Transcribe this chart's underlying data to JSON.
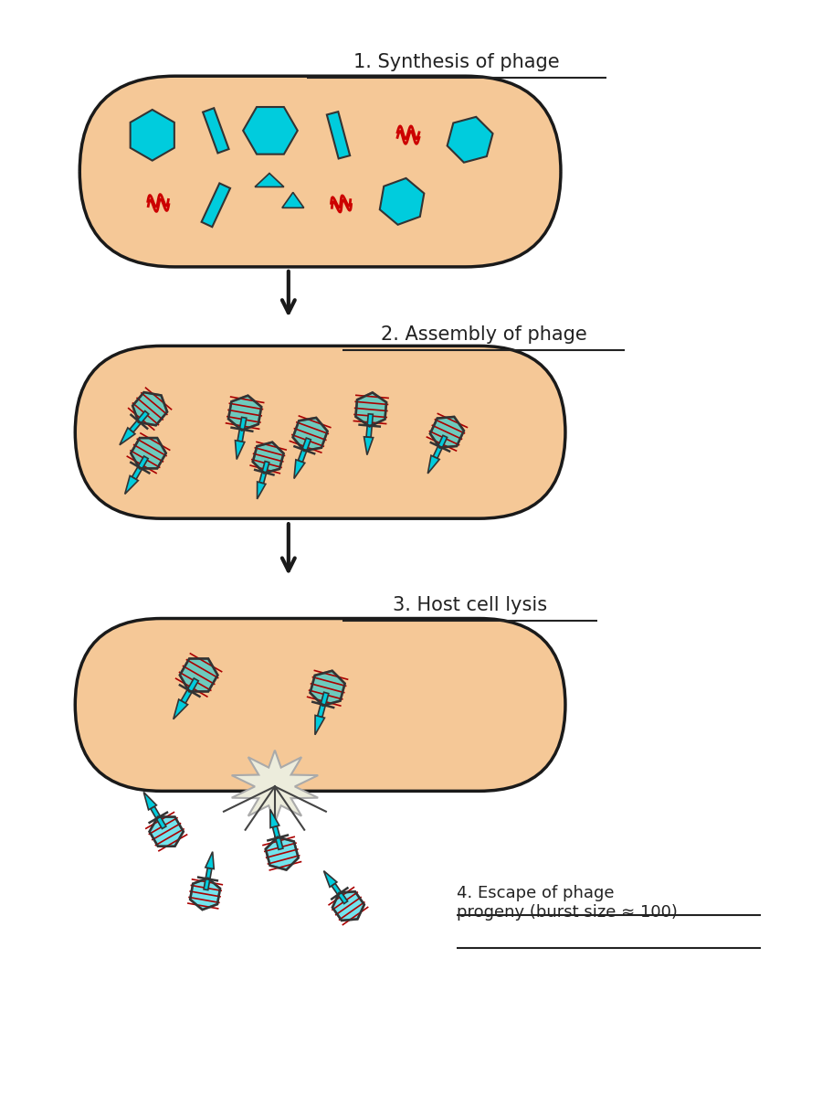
{
  "bg_color": "#ffffff",
  "cell_fill": "#f5c897",
  "cell_edge": "#1a1a1a",
  "cyan": "#00ccdd",
  "red": "#cc0000",
  "arrow_color": "#1a1a1a",
  "labels": [
    "1. Synthesis of phage",
    "2. Assembly of phage",
    "3. Host cell lysis",
    "4. Escape of phage\nprogeny (burst size ≈ 100)"
  ]
}
